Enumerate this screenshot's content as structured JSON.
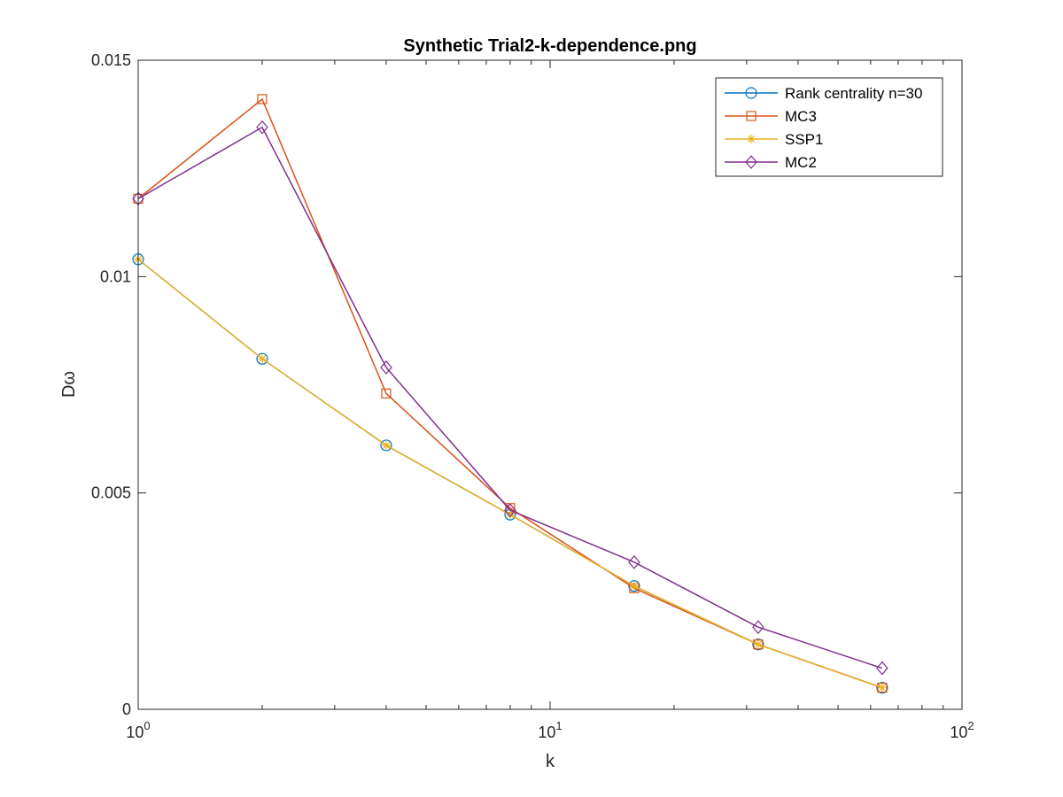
{
  "chart_data": {
    "type": "line",
    "title": "Synthetic Trial2-k-dependence.png",
    "xlabel": "k",
    "ylabel": "Dω",
    "xscale": "log",
    "xlim": [
      1,
      100
    ],
    "ylim": [
      0,
      0.015
    ],
    "x_ticks": [
      {
        "value": 1,
        "base": "10",
        "exp": "0"
      },
      {
        "value": 10,
        "base": "10",
        "exp": "1"
      },
      {
        "value": 100,
        "base": "10",
        "exp": "2"
      }
    ],
    "y_ticks": [
      {
        "value": 0,
        "label": "0"
      },
      {
        "value": 0.005,
        "label": "0.005"
      },
      {
        "value": 0.01,
        "label": "0.01"
      },
      {
        "value": 0.015,
        "label": "0.015"
      }
    ],
    "grid": false,
    "box": true,
    "legend_position": "top-right",
    "x": [
      1,
      2,
      4,
      8,
      16,
      32,
      64
    ],
    "series": [
      {
        "name": "Rank centrality n=30",
        "color": "#0072BD",
        "marker": "circle",
        "values": [
          0.0104,
          0.0081,
          0.0061,
          0.0045,
          0.00285,
          0.0015,
          0.0005
        ]
      },
      {
        "name": "MC3",
        "color": "#D95319",
        "marker": "square",
        "values": [
          0.0118,
          0.0141,
          0.0073,
          0.00465,
          0.0028,
          0.0015,
          0.0005
        ]
      },
      {
        "name": "SSP1",
        "color": "#EDB120",
        "marker": "asterisk",
        "values": [
          0.0104,
          0.0081,
          0.0061,
          0.0045,
          0.00285,
          0.0015,
          0.0005
        ]
      },
      {
        "name": "MC2",
        "color": "#7E2F8E",
        "marker": "diamond",
        "values": [
          0.0118,
          0.01345,
          0.0079,
          0.0046,
          0.0034,
          0.0019,
          0.00095
        ]
      }
    ]
  }
}
